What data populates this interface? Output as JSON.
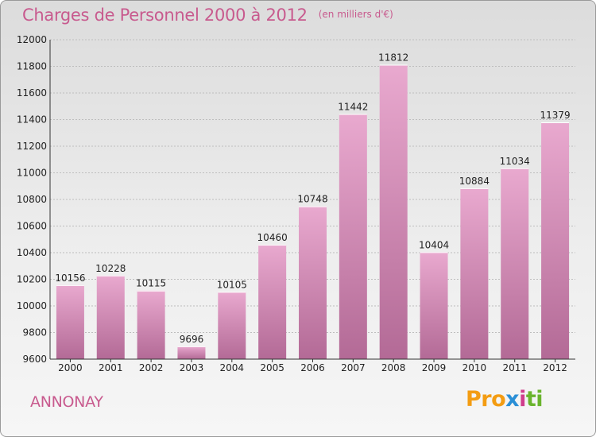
{
  "header": {
    "title": "Charges de Personnel 2000 à 2012",
    "unit_note": "(en milliers d'€)"
  },
  "footer": {
    "city": "ANNONAY",
    "logo_letters": [
      "Pro",
      "x",
      "i",
      "ti"
    ]
  },
  "colors": {
    "title": "#c85a8e",
    "bar_light": "#e9a9cf",
    "bar_dark": "#b36a96",
    "background_top": "#dcdcdc",
    "background_bottom": "#f6f6f6",
    "logo_orange": "#f39c12",
    "logo_blue": "#2a8fd6",
    "logo_pink": "#d03d8c",
    "logo_green": "#6ab42d"
  },
  "chart_data": {
    "type": "bar",
    "title": "Charges de Personnel 2000 à 2012",
    "subtitle": "(en milliers d'€)",
    "xlabel": "",
    "ylabel": "",
    "categories": [
      "2000",
      "2001",
      "2002",
      "2003",
      "2004",
      "2005",
      "2006",
      "2007",
      "2008",
      "2009",
      "2010",
      "2011",
      "2012"
    ],
    "values": [
      10156,
      10228,
      10115,
      9696,
      10105,
      10460,
      10748,
      11442,
      11812,
      10404,
      10884,
      11034,
      11379
    ],
    "ylim": [
      9600,
      12000
    ],
    "yticks": [
      9600,
      9800,
      10000,
      10200,
      10400,
      10600,
      10800,
      11000,
      11200,
      11400,
      11600,
      11800,
      12000
    ],
    "grid": true,
    "data_labels": true,
    "legend": "none"
  }
}
